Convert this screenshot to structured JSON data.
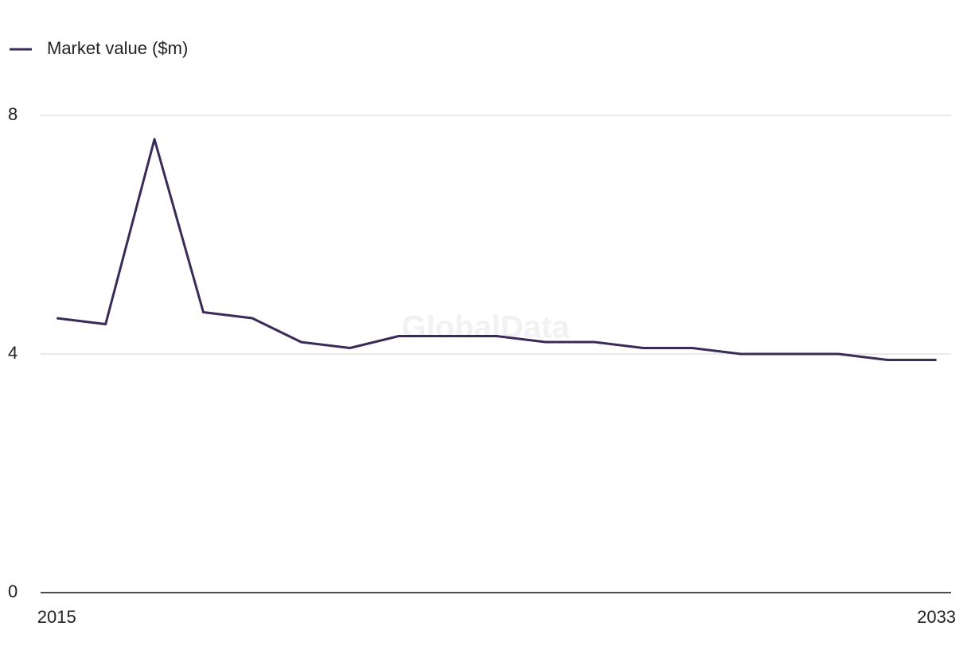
{
  "chart_data": {
    "type": "line",
    "watermark": "GlobalData",
    "x": [
      2015,
      2016,
      2017,
      2018,
      2019,
      2020,
      2021,
      2022,
      2023,
      2024,
      2025,
      2026,
      2027,
      2028,
      2029,
      2030,
      2031,
      2032,
      2033
    ],
    "series": [
      {
        "name": "Market value ($m)",
        "color": "#3a2a58",
        "values": [
          4.6,
          4.5,
          7.6,
          4.7,
          4.6,
          4.2,
          4.1,
          4.3,
          4.3,
          4.3,
          4.2,
          4.2,
          4.1,
          4.1,
          4.0,
          4.0,
          4.0,
          3.9,
          3.9
        ]
      }
    ],
    "xlim": [
      2014.67,
      2033.3
    ],
    "xticks": [
      2015,
      2033
    ],
    "ylim": [
      0,
      8
    ],
    "yticks": [
      0,
      4,
      8
    ],
    "grid": true,
    "legend": "top-left"
  }
}
